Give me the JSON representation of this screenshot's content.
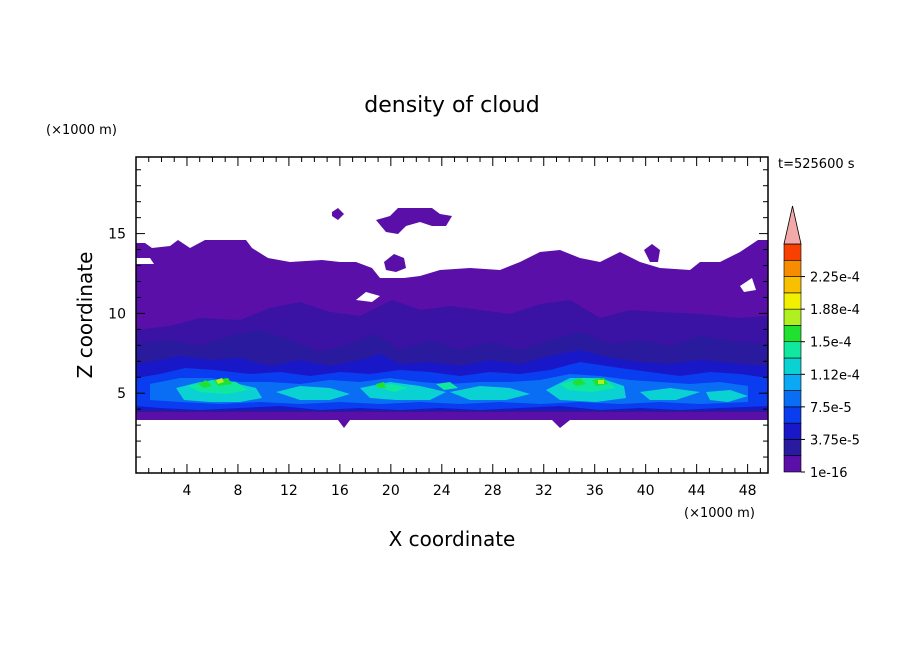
{
  "chart_data": {
    "type": "heatmap",
    "title": "density of cloud",
    "xlabel": "X coordinate",
    "ylabel": "Z coordinate",
    "x_unit": "(×1000 m)",
    "y_unit": "(×1000 m)",
    "time_label": "t=525600 s",
    "xlim": [
      0,
      49.6
    ],
    "ylim": [
      0,
      19.8
    ],
    "x_ticks": [
      "4",
      "8",
      "12",
      "16",
      "20",
      "24",
      "28",
      "32",
      "36",
      "40",
      "44",
      "48"
    ],
    "x_tick_values": [
      4,
      8,
      12,
      16,
      20,
      24,
      28,
      32,
      36,
      40,
      44,
      48
    ],
    "y_ticks": [
      "5",
      "10",
      "15"
    ],
    "y_tick_values": [
      5,
      10,
      15
    ],
    "colorbar": {
      "labels": [
        "1e-16",
        "3.75e-5",
        "7.5e-5",
        "1.12e-4",
        "1.5e-4",
        "1.88e-4",
        "2.25e-4"
      ],
      "levels": 14,
      "colors": [
        "#5a0fa8",
        "#2a1a9e",
        "#1818c8",
        "#0a3cf0",
        "#0a6ef5",
        "#0aa8f5",
        "#0ad2d2",
        "#10e8a0",
        "#20e030",
        "#b0f020",
        "#f0f000",
        "#f8c000",
        "#f88c00",
        "#f84000",
        "#e81010"
      ],
      "extend_color": "#f4a9a9"
    },
    "regions": [
      {
        "level": "1e-16",
        "zmin": 3.6,
        "zmax": 14.5,
        "note": "main cloud body"
      },
      {
        "level": "3.75e-5",
        "zmin": 6.0,
        "zmax": 11.0
      },
      {
        "level": "7.5e-5",
        "zmin": 4.2,
        "zmax": 6.0
      },
      {
        "level": "1.12e-4",
        "zmin": 4.6,
        "zmax": 5.8
      },
      {
        "level": "1.5e-4",
        "note": "peaks near x=6, x=19, x=36, z=5.6"
      }
    ]
  }
}
